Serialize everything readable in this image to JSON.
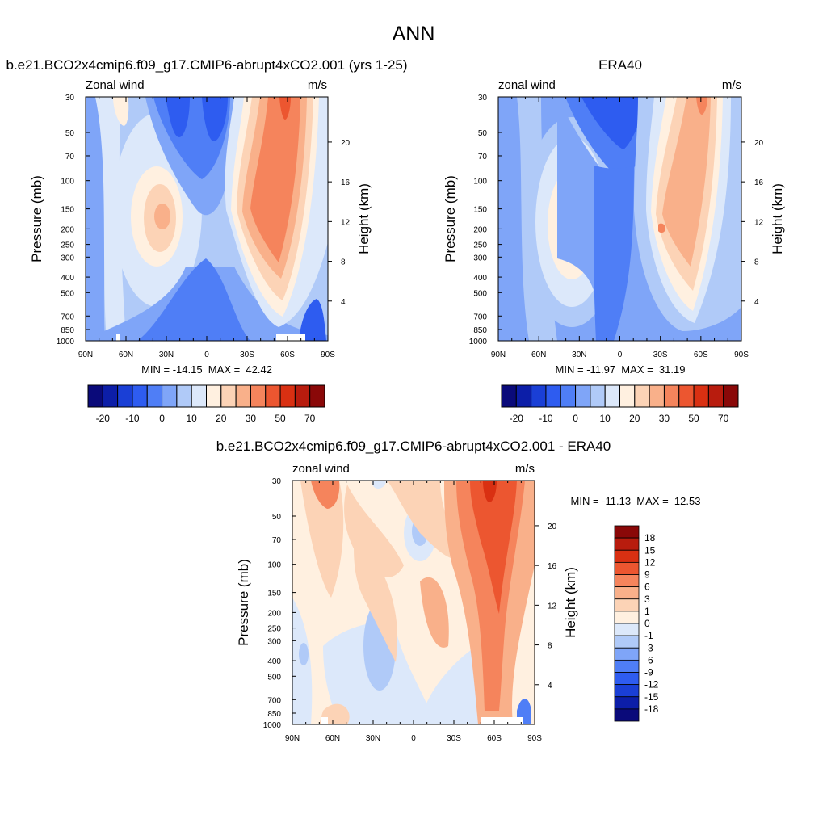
{
  "figure": {
    "title": "ANN"
  },
  "chart_data": [
    {
      "type": "heatmap",
      "id": "model",
      "title": "b.e21.BCO2x4cmip6.f09_g17.CMIP6-abrupt4xCO2.001 (yrs 1-25)",
      "left_label": "Zonal wind",
      "right_label": "m/s",
      "ylabel": "Pressure (mb)",
      "y2label": "Height (km)",
      "x_ticks": [
        "90N",
        "60N",
        "30N",
        "0",
        "30S",
        "60S",
        "90S"
      ],
      "y_ticks": [
        "30",
        "50",
        "70",
        "100",
        "150",
        "200",
        "250",
        "300",
        "400",
        "500",
        "700",
        "850",
        "1000"
      ],
      "y_tick_values": [
        30,
        50,
        70,
        100,
        150,
        200,
        250,
        300,
        400,
        500,
        700,
        850,
        1000
      ],
      "y2_ticks": [
        "20",
        "16",
        "12",
        "8",
        "4"
      ],
      "y2_tick_values": [
        20,
        16,
        12,
        8,
        4
      ],
      "xlim": [
        90,
        -90
      ],
      "ylim": [
        1000,
        30
      ],
      "stats": "MIN = -14.15  MAX =  42.42",
      "min": -14.15,
      "max": 42.42,
      "cbar_tick_labels": [
        "-20",
        "-10",
        "0",
        "10",
        "20",
        "30",
        "50",
        "70"
      ],
      "features": [
        {
          "lat": 37,
          "p": 170,
          "value": 25
        },
        {
          "lat": -38,
          "p": 170,
          "value": 42
        },
        {
          "lat": -48,
          "p": 40,
          "value": 35
        },
        {
          "lat": 15,
          "p": 40,
          "value": -12
        },
        {
          "lat": 0,
          "p": 700,
          "value": -10
        },
        {
          "lat": 70,
          "p": 50,
          "value": 12
        }
      ]
    },
    {
      "type": "heatmap",
      "id": "obs",
      "title": "ERA40",
      "left_label": "zonal wind",
      "right_label": "m/s",
      "ylabel": "Pressure (mb)",
      "y2label": "Height (km)",
      "x_ticks": [
        "90N",
        "60N",
        "30N",
        "0",
        "30S",
        "60S",
        "90S"
      ],
      "y_ticks": [
        "30",
        "50",
        "70",
        "100",
        "150",
        "200",
        "250",
        "300",
        "400",
        "500",
        "700",
        "850",
        "1000"
      ],
      "y_tick_values": [
        30,
        50,
        70,
        100,
        150,
        200,
        250,
        300,
        400,
        500,
        700,
        850,
        1000
      ],
      "y2_ticks": [
        "20",
        "16",
        "12",
        "8",
        "4"
      ],
      "y2_tick_values": [
        20,
        16,
        12,
        8,
        4
      ],
      "xlim": [
        90,
        -90
      ],
      "ylim": [
        1000,
        30
      ],
      "stats": "MIN = -11.97  MAX =  31.19",
      "min": -11.97,
      "max": 31.19,
      "cbar_tick_labels": [
        "-20",
        "-10",
        "0",
        "10",
        "20",
        "30",
        "50",
        "70"
      ],
      "features": [
        {
          "lat": 35,
          "p": 170,
          "value": 22
        },
        {
          "lat": -32,
          "p": 190,
          "value": 31
        },
        {
          "lat": -55,
          "p": 40,
          "value": 30
        },
        {
          "lat": 10,
          "p": 40,
          "value": -11
        },
        {
          "lat": 0,
          "p": 500,
          "value": -8
        }
      ]
    },
    {
      "type": "heatmap",
      "id": "diff",
      "title": "b.e21.BCO2x4cmip6.f09_g17.CMIP6-abrupt4xCO2.001 - ERA40",
      "left_label": "zonal wind",
      "right_label": "m/s",
      "ylabel": "Pressure (mb)",
      "y2label": "Height (km)",
      "x_ticks": [
        "90N",
        "60N",
        "30N",
        "0",
        "30S",
        "60S",
        "90S"
      ],
      "y_ticks": [
        "30",
        "50",
        "70",
        "100",
        "150",
        "200",
        "250",
        "300",
        "400",
        "500",
        "700",
        "850",
        "1000"
      ],
      "y_tick_values": [
        30,
        50,
        70,
        100,
        150,
        200,
        250,
        300,
        400,
        500,
        700,
        850,
        1000
      ],
      "y2_ticks": [
        "20",
        "16",
        "12",
        "8",
        "4"
      ],
      "y2_tick_values": [
        20,
        16,
        12,
        8,
        4
      ],
      "xlim": [
        90,
        -90
      ],
      "ylim": [
        1000,
        30
      ],
      "stats": "MIN = -11.13  MAX =  12.53",
      "min": -11.13,
      "max": 12.53,
      "cbar_tick_labels": [
        "18",
        "15",
        "12",
        "9",
        "6",
        "3",
        "1",
        "0",
        "-1",
        "-3",
        "-6",
        "-9",
        "-12",
        "-15",
        "-18"
      ],
      "features": [
        {
          "lat": -52,
          "p": 60,
          "value": 12
        },
        {
          "lat": -40,
          "p": 200,
          "value": 8
        },
        {
          "lat": 60,
          "p": 60,
          "value": 8
        },
        {
          "lat": 15,
          "p": 80,
          "value": -4
        },
        {
          "lat": -10,
          "p": 500,
          "value": -2
        },
        {
          "lat": 40,
          "p": 400,
          "value": -2
        }
      ]
    }
  ],
  "colorbars": {
    "fill_colors": [
      "#0a0a7a",
      "#0c1ea8",
      "#1a3fd6",
      "#2e5cf0",
      "#4f7ef6",
      "#7fa5f8",
      "#b0caf8",
      "#dce8fa",
      "#fff0e0",
      "#fcd3b6",
      "#f9b08a",
      "#f5845c",
      "#ec5630",
      "#d93012",
      "#b81c0e",
      "#8a0808"
    ],
    "diff_fill_colors": [
      "#8a0808",
      "#b81c0e",
      "#d93012",
      "#ec5630",
      "#f5845c",
      "#f9b08a",
      "#fcd3b6",
      "#fff0e0",
      "#dce8fa",
      "#b0caf8",
      "#7fa5f8",
      "#4f7ef6",
      "#2e5cf0",
      "#1a3fd6",
      "#0c1ea8",
      "#0a0a7a"
    ]
  }
}
